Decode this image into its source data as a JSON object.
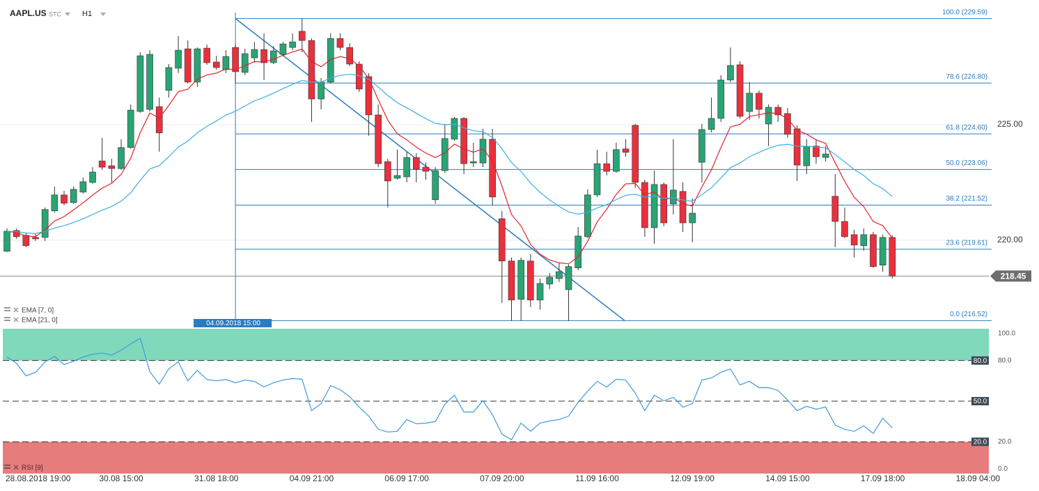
{
  "header": {
    "symbol": "AAPL.US",
    "asset_type": "STC",
    "interval": "H1"
  },
  "chart_data": [
    {
      "type": "candlestick",
      "categories": [
        null,
        null,
        "28.08.2018 19:00",
        null,
        null,
        null,
        null,
        null,
        null,
        null,
        null,
        null,
        "30.08 15:00",
        null,
        null,
        null,
        null,
        null,
        null,
        null,
        null,
        null,
        "31.08 18:00",
        null,
        null,
        null,
        null,
        null,
        null,
        null,
        null,
        null,
        "04.09 21:00",
        null,
        null,
        null,
        null,
        null,
        null,
        null,
        null,
        null,
        "06.09 17:00",
        null,
        null,
        null,
        null,
        null,
        null,
        null,
        null,
        null,
        "07.09 20:00",
        null,
        null,
        null,
        null,
        null,
        null,
        null,
        null,
        null,
        "11.09 16:00",
        null,
        null,
        null,
        null,
        null,
        null,
        null,
        null,
        null,
        "12.09 19:00",
        null,
        null,
        null,
        null,
        null,
        null,
        null,
        null,
        null,
        "14.09 15:00",
        null,
        null,
        null,
        null,
        null,
        null,
        null,
        null,
        null,
        "17.09 18:00",
        null,
        null,
        null,
        null,
        null,
        null,
        null,
        null,
        null,
        "18.09 04:00"
      ],
      "open": [
        219.52,
        220.42,
        220.21,
        220.12,
        220.12,
        221.27,
        221.96,
        221.63,
        222.08,
        222.5,
        223.43,
        223.22,
        223.1,
        224.01,
        225.57,
        225.66,
        225.78,
        226.48,
        227.44,
        228.28,
        226.84,
        228.31,
        227.71,
        227.38,
        228.34,
        227.26,
        227.89,
        228.25,
        227.68,
        228.04,
        228.34,
        229.04,
        228.64,
        226.11,
        226.84,
        228.73,
        228.34,
        227.62,
        227.08,
        225.42,
        223.4,
        222.68,
        222.74,
        223.58,
        223.16,
        221.75,
        223.01,
        224.37,
        225.27,
        223.34,
        223.34,
        224.37,
        220.93,
        219.1,
        217.44,
        219.1,
        217.41,
        218.1,
        218.34,
        217.86,
        218.8,
        220.15,
        221.96,
        223.31,
        222.98,
        223.95,
        224.97,
        222.5,
        220.54,
        222.41,
        221.57,
        222.11,
        220.75,
        223.37,
        224.79,
        225.27,
        226.93,
        227.59,
        225.57,
        226.36,
        225.03,
        225.75,
        225.48,
        224.82,
        223.22,
        224.07,
        223.58,
        221.9,
        220.81,
        220.24,
        219.76,
        220.24,
        218.92,
        220.12,
        null,
        null,
        null,
        null,
        null,
        null,
        null,
        null,
        null
      ],
      "high": [
        220.51,
        220.51,
        220.33,
        220.27,
        221.42,
        222.32,
        222.14,
        222.32,
        222.71,
        223.16,
        224.43,
        223.52,
        224.37,
        225.87,
        228.13,
        228.22,
        226.17,
        227.62,
        228.83,
        228.64,
        228.34,
        228.46,
        227.98,
        228.22,
        228.49,
        228.28,
        228.58,
        228.95,
        228.4,
        228.58,
        228.95,
        229.58,
        228.73,
        227.02,
        228.95,
        228.95,
        228.52,
        227.74,
        227.23,
        225.87,
        223.52,
        223.92,
        223.83,
        223.77,
        223.37,
        223.16,
        225.03,
        225.33,
        225.33,
        224.22,
        224.82,
        224.82,
        221.27,
        219.25,
        219.25,
        219.4,
        218.34,
        218.58,
        219.01,
        218.95,
        220.57,
        222.2,
        223.92,
        223.83,
        224.22,
        224.37,
        225.03,
        222.62,
        223.01,
        222.5,
        224.37,
        222.5,
        221.81,
        225.03,
        226.17,
        227.14,
        228.34,
        227.74,
        226.84,
        226.48,
        225.87,
        225.87,
        225.72,
        224.97,
        224.37,
        224.37,
        224.07,
        222.86,
        221.42,
        220.45,
        220.51,
        220.36,
        220.24,
        220.21,
        null,
        null,
        null,
        null,
        null,
        null,
        null,
        null,
        null
      ],
      "low": [
        219.49,
        220.06,
        219.7,
        219.97,
        219.97,
        221.2,
        221.51,
        221.57,
        222.02,
        222.44,
        223.04,
        222.5,
        223.04,
        223.95,
        225.51,
        225.57,
        223.83,
        226.17,
        227.23,
        226.78,
        226.63,
        227.59,
        227.38,
        227.23,
        226.78,
        227.14,
        227.68,
        226.93,
        227.62,
        227.98,
        228.22,
        228.13,
        225.12,
        225.66,
        226.78,
        228.22,
        227.53,
        226.42,
        224.52,
        223.16,
        221.42,
        222.62,
        222.5,
        222.5,
        222.62,
        221.57,
        222.92,
        224.31,
        222.86,
        223.16,
        223.16,
        221.51,
        217.29,
        216.51,
        216.51,
        217.11,
        216.99,
        217.89,
        218.19,
        216.51,
        218.7,
        220.09,
        221.87,
        222.8,
        222.92,
        223.61,
        222.26,
        220.15,
        219.85,
        220.6,
        221.11,
        220.36,
        219.91,
        222.5,
        224.67,
        225.12,
        226.84,
        225.27,
        225.21,
        225.27,
        224.07,
        225.12,
        224.43,
        222.56,
        222.86,
        223.31,
        223.4,
        219.7,
        220.09,
        219.25,
        219.55,
        218.8,
        218.64,
        218.34,
        null,
        null,
        null,
        null,
        null,
        null,
        null,
        null,
        null
      ],
      "close": [
        220.39,
        220.15,
        219.76,
        220.06,
        221.33,
        221.96,
        221.6,
        222.2,
        222.53,
        222.95,
        223.16,
        223.1,
        224.01,
        225.63,
        227.98,
        228.04,
        224.64,
        227.47,
        228.22,
        226.84,
        228.28,
        227.68,
        227.47,
        227.95,
        227.29,
        228.07,
        228.25,
        227.68,
        228.19,
        228.49,
        228.58,
        228.64,
        226.11,
        226.84,
        228.73,
        228.34,
        227.62,
        226.54,
        225.42,
        223.31,
        222.56,
        222.8,
        223.58,
        223.07,
        222.98,
        223.01,
        224.4,
        225.27,
        223.31,
        223.4,
        224.37,
        221.87,
        219.1,
        217.41,
        219.13,
        217.41,
        218.13,
        218.4,
        218.64,
        218.86,
        220.18,
        221.96,
        223.31,
        222.98,
        223.92,
        223.8,
        222.5,
        220.54,
        222.41,
        220.75,
        222.17,
        220.75,
        221.17,
        224.79,
        225.27,
        226.93,
        227.56,
        225.36,
        226.36,
        225.66,
        225.75,
        225.42,
        224.58,
        223.25,
        224.07,
        223.61,
        223.73,
        220.81,
        220.15,
        219.79,
        220.24,
        218.86,
        220.12,
        218.45,
        null,
        null,
        null,
        null,
        null,
        null,
        null,
        null,
        null
      ],
      "up_color": "#2aa474",
      "down_color": "#e9303d",
      "ylim": [
        216.23,
        229.85
      ],
      "yticks": [
        {
          "value": 225,
          "label": "225.00"
        },
        {
          "value": 220,
          "label": "220.00"
        }
      ],
      "grid": true,
      "last_price": {
        "value": 218.45,
        "label": "218.45"
      },
      "indicators": [
        {
          "name": "EMA [7, 0]",
          "period": 7,
          "color": "#e0232e"
        },
        {
          "name": "EMA [21, 0]",
          "period": 21,
          "color": "#3ab0e0"
        }
      ],
      "fibonacci": {
        "start_label": "04.09.2018 15:00",
        "color": "#2b7bbf",
        "levels": [
          {
            "value": 229.59,
            "label": "100.0 (229.59)"
          },
          {
            "value": 226.8,
            "label": "78.6 (226.80)"
          },
          {
            "value": 224.6,
            "label": "61.8 (224.60)"
          },
          {
            "value": 223.06,
            "label": "50.0 (223.06)"
          },
          {
            "value": 221.52,
            "label": "38.2 (221.52)"
          },
          {
            "value": 219.61,
            "label": "23.6 (219.61)"
          },
          {
            "value": 216.52,
            "label": "0.0 (216.52)"
          }
        ]
      }
    },
    {
      "type": "line",
      "name": "RSI [9]",
      "color": "#3d9bdc",
      "values": [
        82.6,
        78,
        68.7,
        71.3,
        79,
        83,
        77,
        79.5,
        82.6,
        84.6,
        85.6,
        84,
        87.7,
        92.3,
        96.4,
        71.8,
        62.6,
        73.8,
        79,
        65,
        72.8,
        66,
        65,
        66,
        63.6,
        65.6,
        64.6,
        60.5,
        63.6,
        65.6,
        66.7,
        66.2,
        43,
        48.2,
        61.5,
        58.5,
        53.3,
        45.6,
        39,
        29.2,
        27.2,
        27.7,
        36.4,
        33.3,
        33.8,
        34.9,
        47.7,
        54.4,
        42,
        42,
        50.3,
        40,
        25.6,
        21.5,
        33.8,
        27.7,
        33.8,
        35.4,
        36.4,
        39,
        49.2,
        57.4,
        64.6,
        60.5,
        66.2,
        65.6,
        55.9,
        43,
        54.4,
        50.3,
        52.8,
        45.6,
        48.2,
        65.6,
        67.2,
        71.3,
        73.8,
        62,
        64.6,
        60,
        60,
        57.9,
        50.8,
        43,
        46.2,
        44.1,
        45.6,
        32.3,
        29.2,
        27.7,
        31.8,
        26.2,
        37.4,
        30.3,
        null,
        null,
        null,
        null,
        null,
        null,
        null,
        null,
        null
      ],
      "ylim": [
        -3.5,
        103.5
      ],
      "yticks": [
        {
          "value": 100,
          "label": "100.0"
        },
        {
          "value": 80,
          "label": "80.0"
        },
        {
          "value": 20,
          "label": "20.0"
        },
        {
          "value": 0,
          "label": "0.0"
        }
      ],
      "levels": [
        {
          "value": 80,
          "label": "80.0"
        },
        {
          "value": 50,
          "label": "50.0"
        },
        {
          "value": 20,
          "label": "20.0"
        }
      ],
      "overbought_color": "#80d9bb",
      "oversold_color": "#e67c7c"
    }
  ]
}
